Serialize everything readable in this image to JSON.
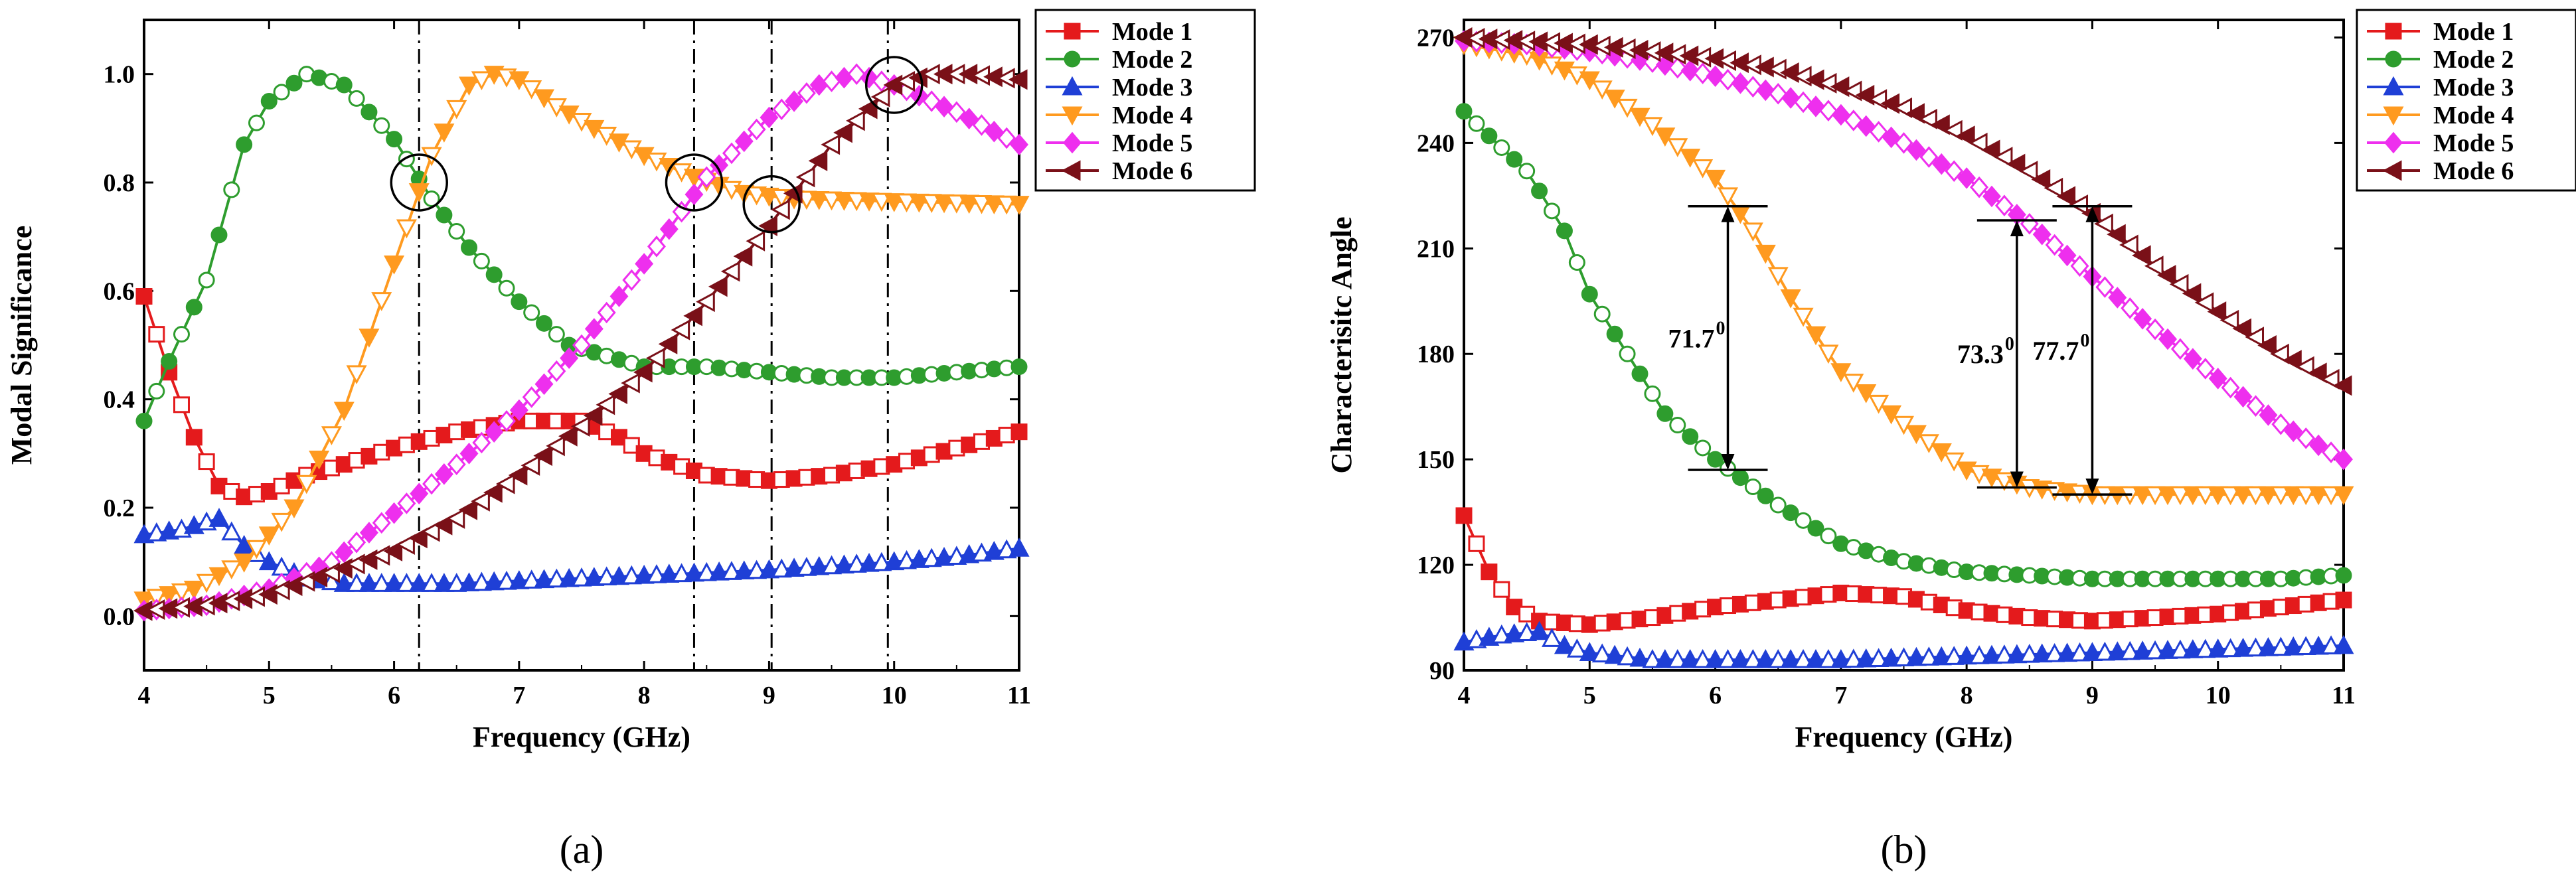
{
  "chart_data": [
    {
      "type": "line",
      "panel_label": "(a)",
      "xlabel": "Frequency (GHz)",
      "ylabel": "Modal Significance",
      "xlim": [
        4,
        11
      ],
      "ylim": [
        -0.1,
        1.1
      ],
      "x_ticks": [
        "4",
        "5",
        "6",
        "7",
        "8",
        "9",
        "10",
        "11"
      ],
      "y_ticks": [
        "0.0",
        "0.2",
        "0.4",
        "0.6",
        "0.8",
        "1.0"
      ],
      "vlines": [
        6.2,
        8.4,
        9.02,
        9.95
      ],
      "circles": [
        [
          6.2,
          0.8
        ],
        [
          8.4,
          0.8
        ],
        [
          9.02,
          0.76
        ],
        [
          10.0,
          0.98
        ]
      ],
      "legend": [
        "Mode 1",
        "Mode 2",
        "Mode 3",
        "Mode 4",
        "Mode 5",
        "Mode 6"
      ],
      "series": [
        {
          "name": "Mode 1",
          "color": "#e41a1c",
          "marker": "square",
          "points": [
            [
              4,
              0.59
            ],
            [
              4.2,
              0.45
            ],
            [
              4.4,
              0.33
            ],
            [
              4.6,
              0.24
            ],
            [
              4.8,
              0.22
            ],
            [
              5,
              0.23
            ],
            [
              5.3,
              0.26
            ],
            [
              5.6,
              0.28
            ],
            [
              6,
              0.31
            ],
            [
              6.5,
              0.34
            ],
            [
              7,
              0.36
            ],
            [
              7.5,
              0.36
            ],
            [
              7.8,
              0.33
            ],
            [
              8,
              0.3
            ],
            [
              8.5,
              0.26
            ],
            [
              9,
              0.25
            ],
            [
              9.5,
              0.26
            ],
            [
              10,
              0.28
            ],
            [
              10.5,
              0.31
            ],
            [
              11,
              0.34
            ]
          ]
        },
        {
          "name": "Mode 2",
          "color": "#2e9d2e",
          "marker": "circle",
          "points": [
            [
              4,
              0.36
            ],
            [
              4.2,
              0.47
            ],
            [
              4.5,
              0.62
            ],
            [
              4.8,
              0.87
            ],
            [
              5,
              0.95
            ],
            [
              5.3,
              1.0
            ],
            [
              5.6,
              0.98
            ],
            [
              6,
              0.88
            ],
            [
              6.3,
              0.77
            ],
            [
              6.6,
              0.68
            ],
            [
              7,
              0.58
            ],
            [
              7.4,
              0.5
            ],
            [
              8,
              0.46
            ],
            [
              8.5,
              0.46
            ],
            [
              9,
              0.45
            ],
            [
              9.5,
              0.44
            ],
            [
              10,
              0.44
            ],
            [
              10.5,
              0.45
            ],
            [
              11,
              0.46
            ]
          ]
        },
        {
          "name": "Mode 3",
          "color": "#1f3fd6",
          "marker": "triangle-up",
          "points": [
            [
              4,
              0.15
            ],
            [
              4.3,
              0.16
            ],
            [
              4.6,
              0.18
            ],
            [
              4.8,
              0.13
            ],
            [
              5,
              0.1
            ],
            [
              5.3,
              0.07
            ],
            [
              5.6,
              0.06
            ],
            [
              6,
              0.06
            ],
            [
              6.5,
              0.06
            ],
            [
              7,
              0.065
            ],
            [
              8,
              0.075
            ],
            [
              9,
              0.085
            ],
            [
              10,
              0.1
            ],
            [
              10.5,
              0.11
            ],
            [
              11,
              0.125
            ]
          ]
        },
        {
          "name": "Mode 4",
          "color": "#ff9a1f",
          "marker": "triangle-down",
          "points": [
            [
              4,
              0.03
            ],
            [
              4.4,
              0.05
            ],
            [
              4.8,
              0.1
            ],
            [
              5.2,
              0.2
            ],
            [
              5.6,
              0.38
            ],
            [
              6,
              0.65
            ],
            [
              6.3,
              0.85
            ],
            [
              6.6,
              0.98
            ],
            [
              6.8,
              1.0
            ],
            [
              7,
              0.99
            ],
            [
              7.3,
              0.94
            ],
            [
              7.6,
              0.9
            ],
            [
              8,
              0.85
            ],
            [
              8.4,
              0.81
            ],
            [
              8.8,
              0.78
            ],
            [
              9.2,
              0.77
            ],
            [
              10,
              0.765
            ],
            [
              11,
              0.76
            ]
          ]
        },
        {
          "name": "Mode 5",
          "color": "#ee2fee",
          "marker": "diamond",
          "points": [
            [
              4,
              0.01
            ],
            [
              4.5,
              0.02
            ],
            [
              5,
              0.05
            ],
            [
              5.5,
              0.1
            ],
            [
              6,
              0.19
            ],
            [
              6.5,
              0.28
            ],
            [
              7,
              0.38
            ],
            [
              7.5,
              0.5
            ],
            [
              8,
              0.65
            ],
            [
              8.5,
              0.81
            ],
            [
              9,
              0.92
            ],
            [
              9.4,
              0.98
            ],
            [
              9.7,
              1.0
            ],
            [
              10,
              0.98
            ],
            [
              10.5,
              0.93
            ],
            [
              11,
              0.87
            ]
          ]
        },
        {
          "name": "Mode 6",
          "color": "#7a1018",
          "marker": "triangle-left",
          "points": [
            [
              4,
              0.01
            ],
            [
              4.5,
              0.02
            ],
            [
              5,
              0.04
            ],
            [
              5.5,
              0.08
            ],
            [
              6,
              0.12
            ],
            [
              6.5,
              0.18
            ],
            [
              7,
              0.26
            ],
            [
              7.5,
              0.35
            ],
            [
              8,
              0.45
            ],
            [
              8.5,
              0.58
            ],
            [
              9,
              0.72
            ],
            [
              9.5,
              0.87
            ],
            [
              10,
              0.98
            ],
            [
              10.3,
              1.0
            ],
            [
              10.6,
              1.0
            ],
            [
              11,
              0.99
            ]
          ]
        }
      ]
    },
    {
      "type": "line",
      "panel_label": "(b)",
      "xlabel": "Frequency (GHz)",
      "ylabel": "Characterisitc Angle",
      "xlim": [
        4,
        11
      ],
      "ylim": [
        90,
        275
      ],
      "x_ticks": [
        "4",
        "5",
        "6",
        "7",
        "8",
        "9",
        "10",
        "11"
      ],
      "y_ticks": [
        "90",
        "120",
        "150",
        "180",
        "210",
        "240",
        "270"
      ],
      "legend": [
        "Mode 1",
        "Mode 2",
        "Mode 3",
        "Mode 4",
        "Mode 5",
        "Mode 6"
      ],
      "annotations": [
        {
          "text": "71.7",
          "sup": "0",
          "x": 6.1,
          "y_low": 147,
          "y_high": 222
        },
        {
          "text": "73.3",
          "sup": "0",
          "x": 8.4,
          "y_low": 142,
          "y_high": 218
        },
        {
          "text": "77.7",
          "sup": "0",
          "x": 9.0,
          "y_low": 140,
          "y_high": 222
        }
      ],
      "series": [
        {
          "name": "Mode 1",
          "color": "#e41a1c",
          "marker": "square",
          "points": [
            [
              4,
              134
            ],
            [
              4.2,
              118
            ],
            [
              4.4,
              108
            ],
            [
              4.6,
              104
            ],
            [
              5,
              103
            ],
            [
              5.5,
              105
            ],
            [
              6,
              108
            ],
            [
              6.5,
              110
            ],
            [
              7,
              112
            ],
            [
              7.5,
              111
            ],
            [
              8,
              107
            ],
            [
              8.5,
              105
            ],
            [
              9,
              104
            ],
            [
              9.5,
              105
            ],
            [
              10,
              106
            ],
            [
              10.5,
              108
            ],
            [
              11,
              110
            ]
          ]
        },
        {
          "name": "Mode 2",
          "color": "#2e9d2e",
          "marker": "circle",
          "points": [
            [
              4,
              249
            ],
            [
              4.2,
              242
            ],
            [
              4.5,
              232
            ],
            [
              4.8,
              215
            ],
            [
              5,
              197
            ],
            [
              5.3,
              180
            ],
            [
              5.6,
              163
            ],
            [
              6,
              150
            ],
            [
              6.5,
              137
            ],
            [
              7,
              126
            ],
            [
              7.5,
              121
            ],
            [
              8,
              118
            ],
            [
              8.5,
              117
            ],
            [
              9,
              116
            ],
            [
              9.5,
              116
            ],
            [
              10,
              116
            ],
            [
              10.5,
              116
            ],
            [
              11,
              117
            ]
          ]
        },
        {
          "name": "Mode 3",
          "color": "#1f3fd6",
          "marker": "triangle-up",
          "points": [
            [
              4,
              98
            ],
            [
              4.3,
              100
            ],
            [
              4.6,
              101
            ],
            [
              4.8,
              97
            ],
            [
              5,
              95
            ],
            [
              5.5,
              93
            ],
            [
              6,
              93
            ],
            [
              7,
              93
            ],
            [
              8,
              94
            ],
            [
              9,
              95
            ],
            [
              10,
              96
            ],
            [
              11,
              97
            ]
          ]
        },
        {
          "name": "Mode 4",
          "color": "#ff9a1f",
          "marker": "triangle-down",
          "points": [
            [
              4,
              268
            ],
            [
              4.5,
              265
            ],
            [
              5,
              258
            ],
            [
              5.5,
              245
            ],
            [
              6,
              230
            ],
            [
              6.3,
              215
            ],
            [
              6.6,
              196
            ],
            [
              7,
              175
            ],
            [
              7.5,
              160
            ],
            [
              8,
              147
            ],
            [
              8.5,
              142
            ],
            [
              9,
              140
            ],
            [
              9.5,
              140
            ],
            [
              10,
              140
            ],
            [
              10.5,
              140
            ],
            [
              11,
              140
            ]
          ]
        },
        {
          "name": "Mode 5",
          "color": "#ee2fee",
          "marker": "diamond",
          "points": [
            [
              4,
              269
            ],
            [
              4.5,
              268
            ],
            [
              5,
              266
            ],
            [
              5.5,
              263
            ],
            [
              6,
              259
            ],
            [
              6.5,
              254
            ],
            [
              7,
              248
            ],
            [
              7.5,
              240
            ],
            [
              8,
              230
            ],
            [
              8.5,
              217
            ],
            [
              9,
              202
            ],
            [
              9.5,
              187
            ],
            [
              10,
              173
            ],
            [
              10.5,
              160
            ],
            [
              11,
              150
            ]
          ]
        },
        {
          "name": "Mode 6",
          "color": "#7a1018",
          "marker": "triangle-left",
          "points": [
            [
              4,
              270
            ],
            [
              4.5,
              269
            ],
            [
              5,
              268
            ],
            [
              5.5,
              266
            ],
            [
              6,
              264
            ],
            [
              6.5,
              261
            ],
            [
              7,
              256
            ],
            [
              7.5,
              250
            ],
            [
              8,
              242
            ],
            [
              8.5,
              232
            ],
            [
              9,
              220
            ],
            [
              9.5,
              205
            ],
            [
              10,
              192
            ],
            [
              10.5,
              180
            ],
            [
              11,
              171
            ]
          ]
        }
      ]
    }
  ]
}
